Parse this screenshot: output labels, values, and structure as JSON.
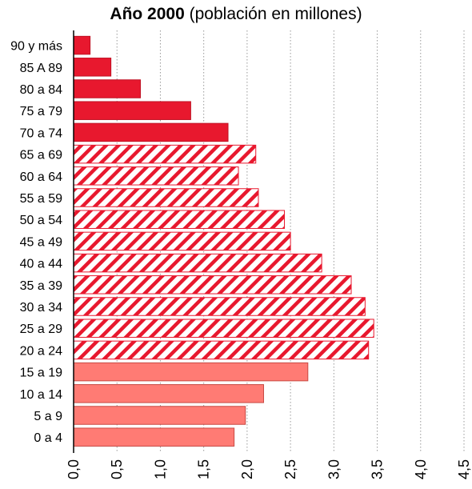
{
  "chart_data": {
    "type": "bar",
    "orientation": "horizontal",
    "title": "Año 2000",
    "subtitle": "(población en millones)",
    "categories": [
      "90 y más",
      "85 A 89",
      "80 a 84",
      "75 a 79",
      "70 a 74",
      "65 a 69",
      "60 a 64",
      "55 a 59",
      "50 a 54",
      "45 a 49",
      "40 a 44",
      "35 a 39",
      "30 a 34",
      "25 a 29",
      "20 a 24",
      "15 a 19",
      "10 a 14",
      "5 a 9",
      "0 a 4"
    ],
    "values": [
      0.19,
      0.43,
      0.77,
      1.35,
      1.78,
      2.1,
      1.9,
      2.13,
      2.43,
      2.5,
      2.86,
      3.2,
      3.36,
      3.46,
      3.4,
      2.7,
      2.19,
      1.98,
      1.85
    ],
    "bar_styles": [
      "solid",
      "solid",
      "solid",
      "solid",
      "solid",
      "hatched",
      "hatched",
      "hatched",
      "hatched",
      "hatched",
      "hatched",
      "hatched",
      "hatched",
      "hatched",
      "hatched",
      "light",
      "light",
      "light",
      "light"
    ],
    "xlim": [
      0,
      4.5
    ],
    "xticks": [
      "0,0",
      "0,5",
      "1,0",
      "1,5",
      "2,0",
      "2,5",
      "3,0",
      "3,5",
      "4,0",
      "4,5"
    ],
    "grid": "vertical-dotted",
    "colors": {
      "solid": "#e8182e",
      "hatched": "#e8182e",
      "light": "#ff7b74",
      "grid": "#999999"
    }
  }
}
